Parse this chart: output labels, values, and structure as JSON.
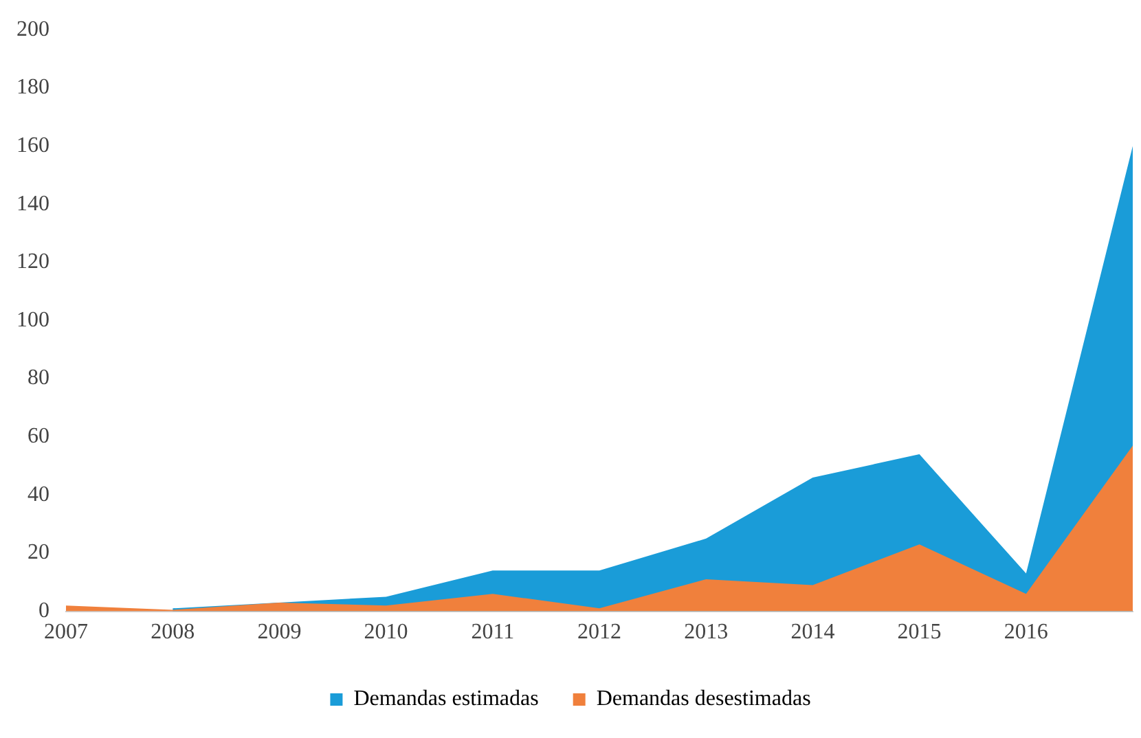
{
  "chart_data": {
    "type": "area",
    "categories": [
      "2007",
      "2008",
      "2009",
      "2010",
      "2011",
      "2012",
      "2013",
      "2014",
      "2015",
      "2016",
      null
    ],
    "series": [
      {
        "name": "Demandas estimadas",
        "color": "#1a9cd8",
        "values": [
          null,
          1,
          null,
          5,
          14,
          14,
          25,
          46,
          54,
          13,
          160
        ]
      },
      {
        "name": "Demandas desestimadas",
        "color": "#f0803c",
        "values": [
          2,
          0.5,
          3,
          2,
          6,
          1,
          11,
          9,
          23,
          6,
          57
        ]
      }
    ],
    "ylim": [
      0,
      200
    ],
    "yticks": [
      0,
      20,
      40,
      60,
      80,
      100,
      120,
      140,
      160,
      180,
      200
    ],
    "grid": false,
    "legend": "bottom"
  }
}
